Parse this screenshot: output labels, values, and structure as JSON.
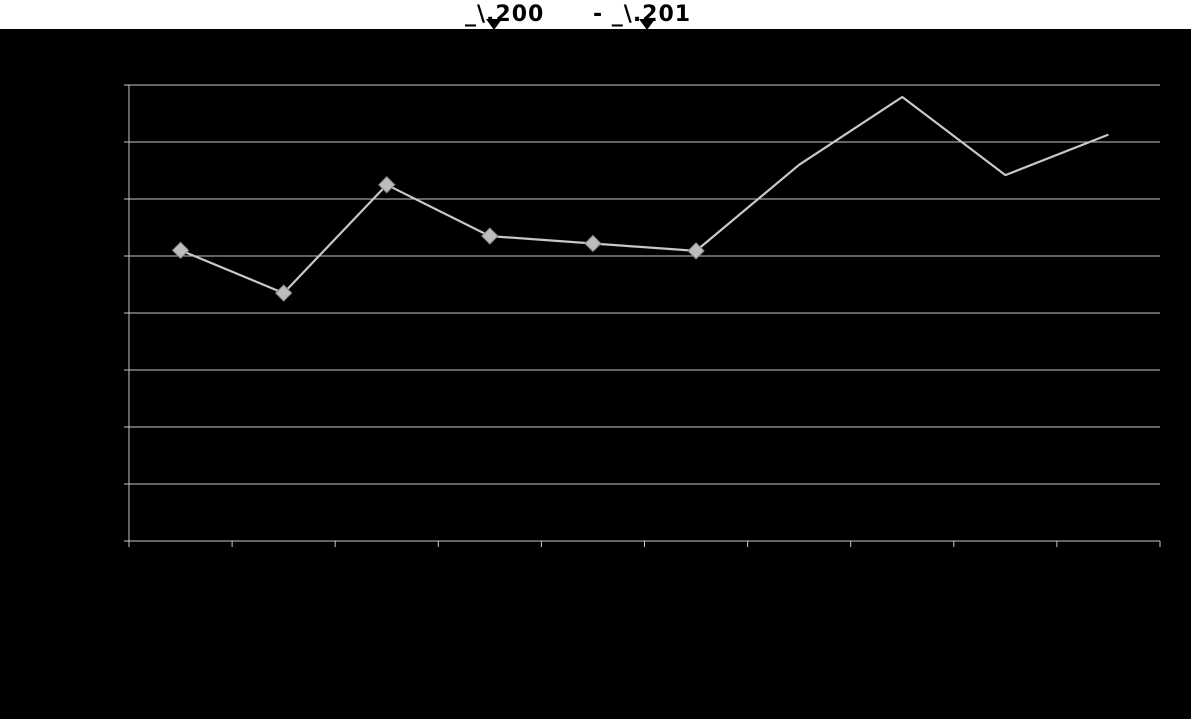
{
  "header": {
    "left_label": "_\\.200",
    "right_label": "- _\\.201",
    "background": "#ffffff",
    "text_color": "#000000"
  },
  "chart_data": {
    "type": "line",
    "x": [
      1,
      2,
      3,
      4,
      5,
      6,
      7,
      8,
      9,
      10
    ],
    "series": [
      {
        "values": [
          51,
          43.5,
          62.5,
          53.5,
          52.2,
          50.9,
          66,
          77.9,
          64.2,
          71.3
        ],
        "markers": [
          true,
          true,
          true,
          true,
          true,
          true,
          false,
          false,
          false,
          false
        ]
      }
    ],
    "xlim": [
      0.5,
      10.5
    ],
    "ylim": [
      0,
      80
    ],
    "ytick_step": 10,
    "grid": true,
    "background_color": "#000000",
    "line_color": "#c8c8c8",
    "grid_color": "#c8c8c8"
  }
}
